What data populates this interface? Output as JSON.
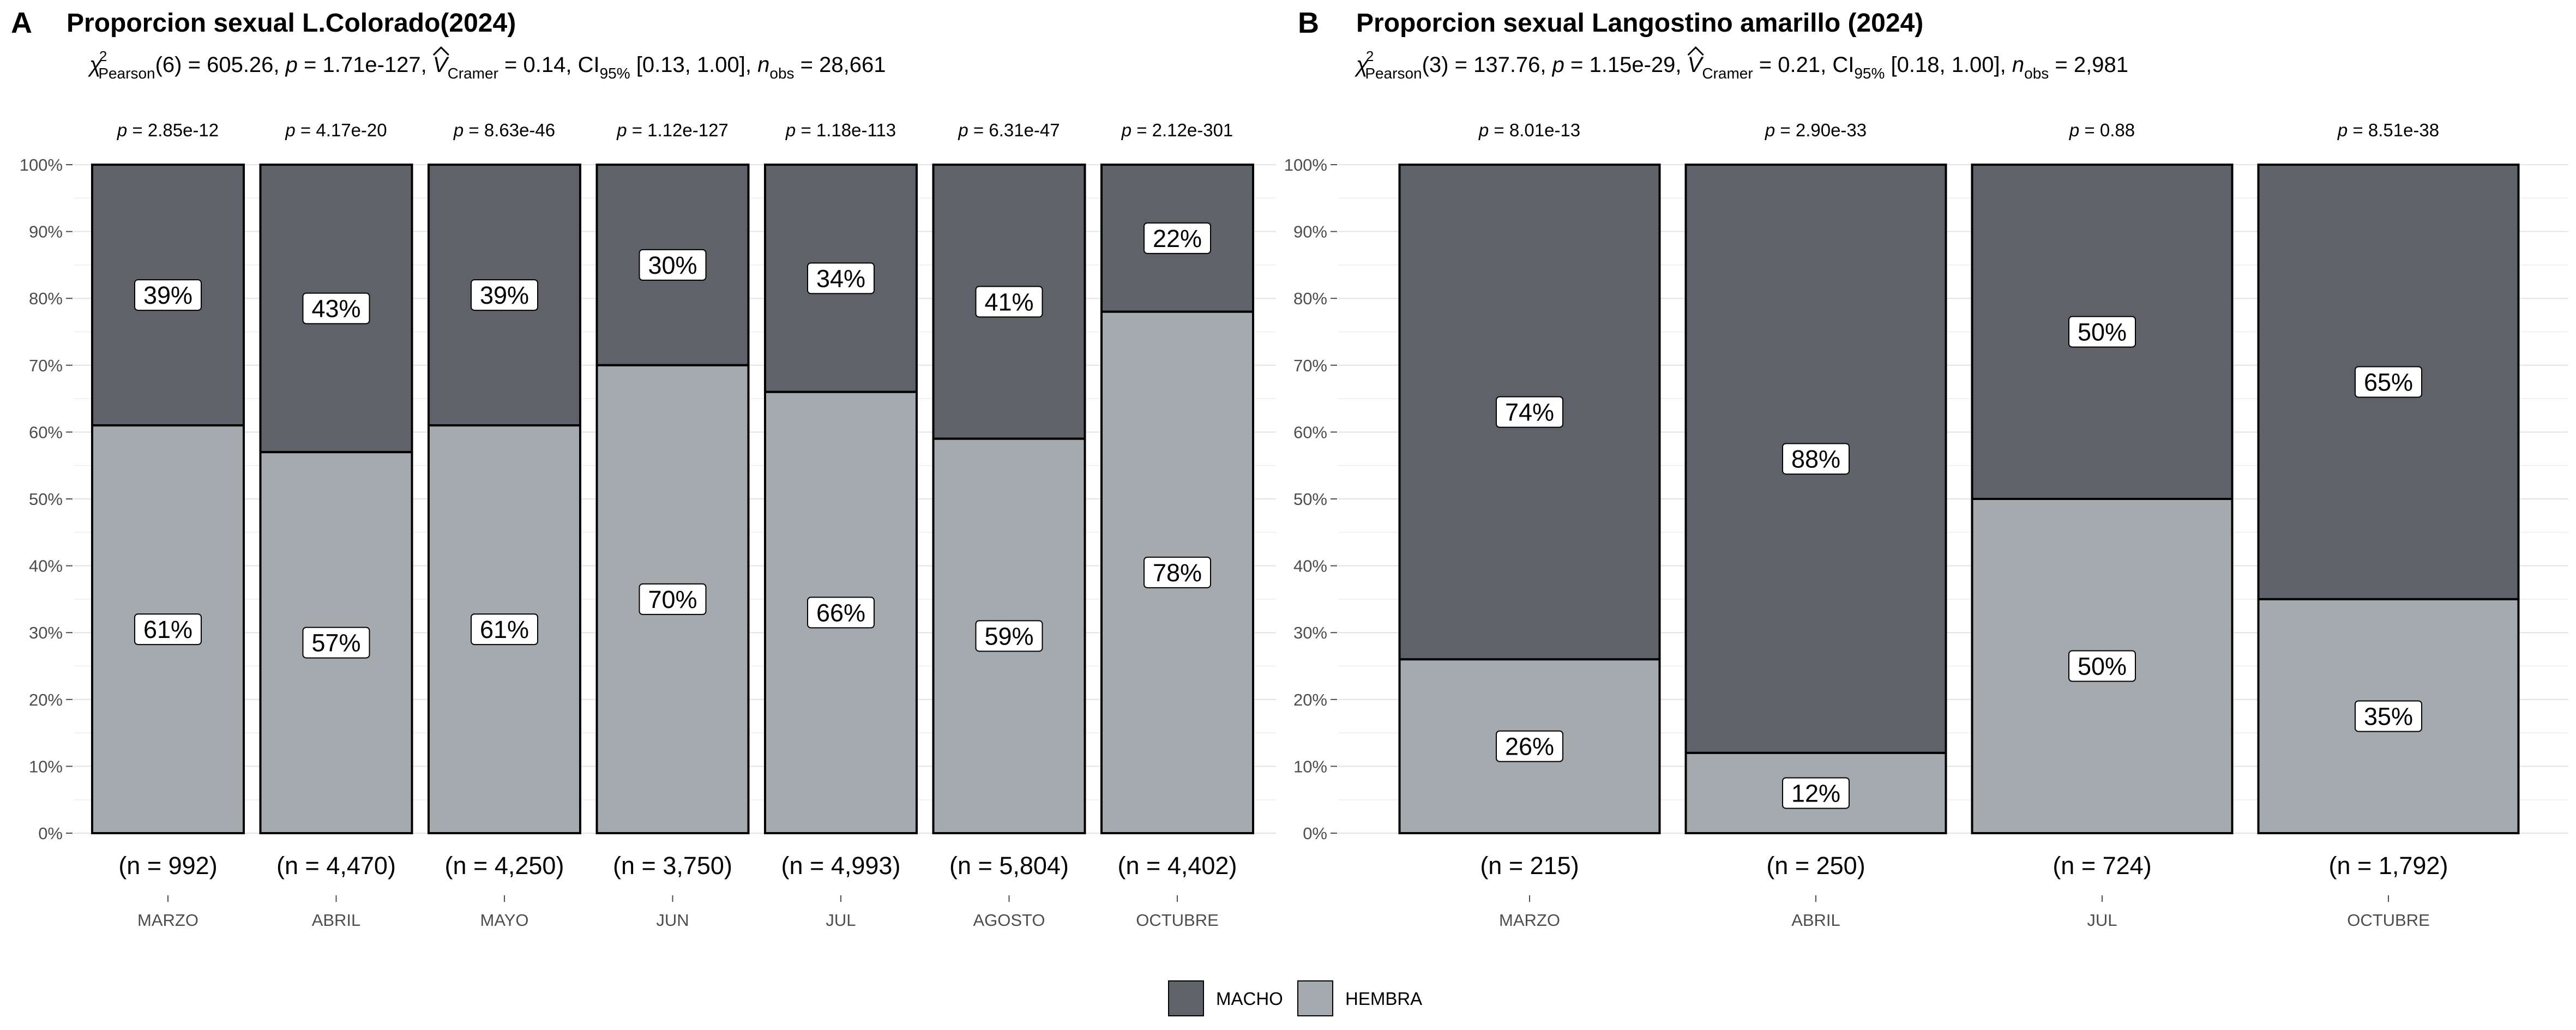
{
  "colors": {
    "macho": "#5f6269",
    "hembra": "#a4aaad",
    "grid_major": "#e3e3e3",
    "grid_minor": "#f1f1f1",
    "label_bg": "#ffffff"
  },
  "legend": {
    "placement": "bottom",
    "items": [
      {
        "name": "MACHO",
        "color": "#5f6269"
      },
      {
        "name": "HEMBRA",
        "color": "#a4aaad"
      }
    ]
  },
  "chart_data": [
    {
      "type": "bar",
      "stacked": true,
      "panel_letter": "A",
      "title": "Proporcion sexual L.Colorado(2024)",
      "stats": {
        "chi_sq": "χ",
        "chi_sup": "2",
        "chi_sub": "Pearson",
        "chi_val": "(6) = 605.26, ",
        "p_sym": "p",
        "p_val": " = 1.71e-127, ",
        "v_sym": "V",
        "v_hat": "^",
        "v_sub": "Cramer",
        "v_val": " = 0.14, CI",
        "ci_sub": "95%",
        "ci_val": " [0.13, 1.00], ",
        "n_sym": "n",
        "n_sub": "obs",
        "n_val": " = 28,661"
      },
      "y_ticks": [
        "0%",
        "10%",
        "20%",
        "30%",
        "40%",
        "50%",
        "60%",
        "70%",
        "80%",
        "90%",
        "100%"
      ],
      "ylim": [
        0,
        100
      ],
      "categories": [
        "MARZO",
        "ABRIL",
        "MAYO",
        "JUN",
        "JUL",
        "AGOSTO",
        "OCTUBRE"
      ],
      "n_labels": [
        "(n = 992)",
        "(n = 4,470)",
        "(n = 4,250)",
        "(n = 3,750)",
        "(n = 4,993)",
        "(n = 5,804)",
        "(n = 4,402)"
      ],
      "p_labels": [
        "p = 2.85e-12",
        "p = 4.17e-20",
        "p = 8.63e-46",
        "p = 1.12e-127",
        "p = 1.18e-113",
        "p = 6.31e-47",
        "p = 2.12e-301"
      ],
      "series": [
        {
          "name": "HEMBRA",
          "values": [
            61,
            57,
            61,
            70,
            66,
            59,
            78
          ],
          "labels": [
            "61%",
            "57%",
            "61%",
            "70%",
            "66%",
            "59%",
            "78%"
          ]
        },
        {
          "name": "MACHO",
          "values": [
            39,
            43,
            39,
            30,
            34,
            41,
            22
          ],
          "labels": [
            "39%",
            "43%",
            "39%",
            "30%",
            "34%",
            "41%",
            "22%"
          ]
        }
      ]
    },
    {
      "type": "bar",
      "stacked": true,
      "panel_letter": "B",
      "title": "Proporcion sexual Langostino amarillo (2024)",
      "stats": {
        "chi_sq": "χ",
        "chi_sup": "2",
        "chi_sub": "Pearson",
        "chi_val": "(3) = 137.76, ",
        "p_sym": "p",
        "p_val": " = 1.15e-29, ",
        "v_sym": "V",
        "v_hat": "^",
        "v_sub": "Cramer",
        "v_val": " = 0.21, CI",
        "ci_sub": "95%",
        "ci_val": " [0.18, 1.00], ",
        "n_sym": "n",
        "n_sub": "obs",
        "n_val": " = 2,981"
      },
      "y_ticks": [
        "0%",
        "10%",
        "20%",
        "30%",
        "40%",
        "50%",
        "60%",
        "70%",
        "80%",
        "90%",
        "100%"
      ],
      "ylim": [
        0,
        100
      ],
      "categories": [
        "MARZO",
        "ABRIL",
        "JUL",
        "OCTUBRE"
      ],
      "n_labels": [
        "(n = 215)",
        "(n = 250)",
        "(n = 724)",
        "(n = 1,792)"
      ],
      "p_labels": [
        "p = 8.01e-13",
        "p = 2.90e-33",
        "p = 0.88",
        "p = 8.51e-38"
      ],
      "series": [
        {
          "name": "HEMBRA",
          "values": [
            26,
            12,
            50,
            35
          ],
          "labels": [
            "26%",
            "12%",
            "50%",
            "35%"
          ]
        },
        {
          "name": "MACHO",
          "values": [
            74,
            88,
            50,
            65
          ],
          "labels": [
            "74%",
            "88%",
            "50%",
            "65%"
          ]
        }
      ]
    }
  ]
}
